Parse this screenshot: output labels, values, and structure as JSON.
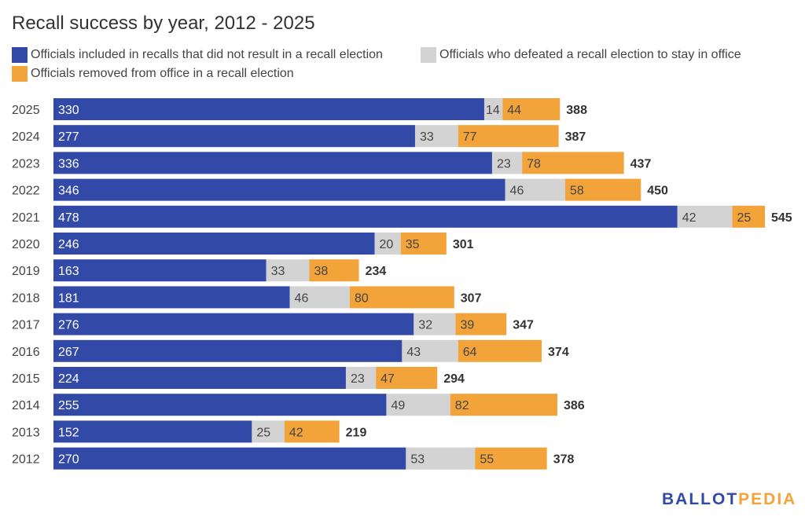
{
  "colors": {
    "blue": "#3349a8",
    "gray": "#d3d3d3",
    "orange": "#f2a33a",
    "blue_label": "#ffffff",
    "seg_label": "#444444",
    "total_label": "#333333"
  },
  "logo": {
    "part1": "BALLOT",
    "part2": "PEDIA"
  },
  "chart_data": {
    "type": "bar",
    "orientation": "horizontal",
    "stacked": true,
    "title": "Recall success by year, 2012 - 2025",
    "xlabel": "",
    "ylabel": "",
    "legend_position": "top-left",
    "grid": false,
    "xlim": [
      0,
      545
    ],
    "categories": [
      "2025",
      "2024",
      "2023",
      "2022",
      "2021",
      "2020",
      "2019",
      "2018",
      "2017",
      "2016",
      "2015",
      "2014",
      "2013",
      "2012"
    ],
    "series": [
      {
        "name": "Officials included in recalls that did not result in a recall election",
        "color": "#3349a8",
        "values": [
          330,
          277,
          336,
          346,
          478,
          246,
          163,
          181,
          276,
          267,
          224,
          255,
          152,
          270
        ]
      },
      {
        "name": "Officials who defeated a recall election to stay in office",
        "color": "#d3d3d3",
        "values": [
          14,
          33,
          23,
          46,
          42,
          20,
          33,
          46,
          32,
          43,
          23,
          49,
          25,
          53
        ]
      },
      {
        "name": "Officials removed from office in a recall election",
        "color": "#f2a33a",
        "values": [
          44,
          77,
          78,
          58,
          25,
          35,
          38,
          80,
          39,
          64,
          47,
          82,
          42,
          55
        ]
      }
    ],
    "totals": [
      388,
      387,
      437,
      450,
      545,
      301,
      234,
      307,
      347,
      374,
      294,
      386,
      219,
      378
    ]
  }
}
